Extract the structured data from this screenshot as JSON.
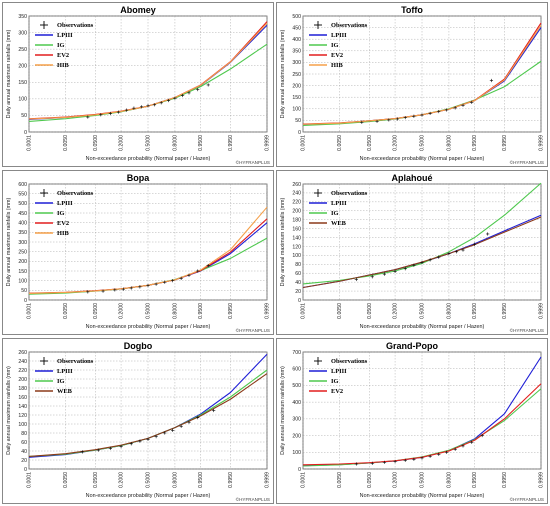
{
  "figure": {
    "watermark": "©HYFRANPLUS",
    "x_axis_label": "Non-exceedance probability (Normal paper / Hazen)",
    "y_axis_label": "Daily annual maximum rainfalls (mm)",
    "x_tick_labels": [
      "0.0001",
      "0.0050",
      "0.0500",
      "0.2000",
      "0.5000",
      "0.8000",
      "0.9500",
      "0.9950",
      "0.9999"
    ]
  },
  "colors": {
    "LPIII": "#1f1fd6",
    "IG": "#4ec84e",
    "EV2": "#e21f1f",
    "HIB": "#f5a04a",
    "WEB": "#8b3a1a",
    "obs": "#000000",
    "grid": "#9a9a9a"
  },
  "chart_data": [
    {
      "type": "line",
      "title": "Abomey",
      "x_scale": "normal-probability",
      "ylim": [
        0,
        350
      ],
      "yticks": [
        0,
        50,
        100,
        150,
        200,
        250,
        300,
        350
      ],
      "legend": [
        "Observations",
        "LPIII",
        "IG",
        "EV2",
        "HIB"
      ],
      "legend_position": "top-left",
      "grid": true,
      "x": [
        0.0001,
        0.005,
        0.05,
        0.2,
        0.5,
        0.8,
        0.95,
        0.995,
        0.9999
      ],
      "series": [
        {
          "name": "LPIII",
          "values": [
            38,
            44,
            52,
            62,
            78,
            104,
            140,
            210,
            322
          ]
        },
        {
          "name": "IG",
          "values": [
            32,
            40,
            50,
            61,
            78,
            102,
            137,
            190,
            265
          ]
        },
        {
          "name": "EV2",
          "values": [
            40,
            45,
            53,
            63,
            78,
            104,
            142,
            212,
            333
          ]
        },
        {
          "name": "HIB",
          "values": [
            39,
            44,
            52,
            62,
            78,
            104,
            141,
            211,
            328
          ]
        }
      ],
      "observations": [
        [
          0.03,
          45
        ],
        [
          0.07,
          52
        ],
        [
          0.12,
          56
        ],
        [
          0.18,
          60
        ],
        [
          0.25,
          66
        ],
        [
          0.33,
          72
        ],
        [
          0.42,
          76
        ],
        [
          0.5,
          79
        ],
        [
          0.58,
          82
        ],
        [
          0.66,
          88
        ],
        [
          0.74,
          95
        ],
        [
          0.8,
          102
        ],
        [
          0.86,
          110
        ],
        [
          0.9,
          118
        ],
        [
          0.94,
          128
        ],
        [
          0.97,
          142
        ]
      ]
    },
    {
      "type": "line",
      "title": "Toffo",
      "x_scale": "normal-probability",
      "ylim": [
        0,
        500
      ],
      "yticks": [
        0,
        50,
        100,
        150,
        200,
        250,
        300,
        350,
        400,
        450,
        500
      ],
      "legend": [
        "Observations",
        "LPIII",
        "IG",
        "EV2",
        "HIB"
      ],
      "legend_position": "top-left",
      "grid": true,
      "x": [
        0.0001,
        0.005,
        0.05,
        0.2,
        0.5,
        0.8,
        0.95,
        0.995,
        0.9999
      ],
      "series": [
        {
          "name": "LPIII",
          "values": [
            32,
            38,
            48,
            58,
            74,
            98,
            135,
            220,
            450
          ]
        },
        {
          "name": "IG",
          "values": [
            28,
            35,
            45,
            56,
            74,
            100,
            138,
            195,
            305
          ]
        },
        {
          "name": "EV2",
          "values": [
            34,
            39,
            48,
            58,
            74,
            98,
            136,
            228,
            470
          ]
        },
        {
          "name": "HIB",
          "values": [
            33,
            38,
            48,
            58,
            74,
            98,
            135,
            224,
            460
          ]
        }
      ],
      "observations": [
        [
          0.03,
          42
        ],
        [
          0.08,
          46
        ],
        [
          0.15,
          52
        ],
        [
          0.22,
          56
        ],
        [
          0.3,
          62
        ],
        [
          0.4,
          68
        ],
        [
          0.5,
          73
        ],
        [
          0.6,
          80
        ],
        [
          0.7,
          88
        ],
        [
          0.78,
          95
        ],
        [
          0.85,
          104
        ],
        [
          0.9,
          115
        ],
        [
          0.94,
          128
        ],
        [
          0.985,
          222
        ]
      ]
    },
    {
      "type": "line",
      "title": "Bopa",
      "x_scale": "normal-probability",
      "ylim": [
        0,
        600
      ],
      "yticks": [
        0,
        50,
        100,
        150,
        200,
        250,
        300,
        350,
        400,
        450,
        500,
        550,
        600
      ],
      "legend": [
        "Observations",
        "LPIII",
        "IG",
        "EV2",
        "HIB"
      ],
      "legend_position": "top-left",
      "grid": true,
      "x": [
        0.0001,
        0.005,
        0.05,
        0.2,
        0.5,
        0.8,
        0.95,
        0.995,
        0.9999
      ],
      "series": [
        {
          "name": "LPIII",
          "values": [
            32,
            38,
            47,
            58,
            76,
            104,
            150,
            240,
            400
          ]
        },
        {
          "name": "IG",
          "values": [
            30,
            36,
            46,
            57,
            76,
            106,
            152,
            215,
            320
          ]
        },
        {
          "name": "EV2",
          "values": [
            35,
            40,
            48,
            58,
            76,
            104,
            152,
            248,
            420
          ]
        },
        {
          "name": "HIB",
          "values": [
            34,
            39,
            47,
            58,
            76,
            104,
            155,
            260,
            480
          ]
        }
      ],
      "observations": [
        [
          0.03,
          42
        ],
        [
          0.08,
          46
        ],
        [
          0.15,
          52
        ],
        [
          0.22,
          56
        ],
        [
          0.3,
          62
        ],
        [
          0.4,
          68
        ],
        [
          0.5,
          74
        ],
        [
          0.6,
          82
        ],
        [
          0.7,
          92
        ],
        [
          0.78,
          100
        ],
        [
          0.85,
          112
        ],
        [
          0.9,
          128
        ],
        [
          0.94,
          150
        ],
        [
          0.97,
          178
        ]
      ]
    },
    {
      "type": "line",
      "title": "Aplahoué",
      "x_scale": "normal-probability",
      "ylim": [
        0,
        260
      ],
      "yticks": [
        0,
        20,
        40,
        60,
        80,
        100,
        120,
        140,
        160,
        180,
        200,
        220,
        240,
        260
      ],
      "legend": [
        "Observations",
        "LPIII",
        "IG",
        "WEB"
      ],
      "legend_position": "top-left",
      "grid": true,
      "x": [
        0.0001,
        0.005,
        0.05,
        0.2,
        0.5,
        0.8,
        0.95,
        0.995,
        0.9999
      ],
      "series": [
        {
          "name": "LPIII",
          "values": [
            28,
            42,
            56,
            68,
            84,
            104,
            126,
            155,
            190
          ]
        },
        {
          "name": "IG",
          "values": [
            36,
            44,
            54,
            65,
            82,
            108,
            140,
            190,
            262
          ]
        },
        {
          "name": "WEB",
          "values": [
            28,
            42,
            56,
            68,
            85,
            104,
            124,
            152,
            186
          ]
        }
      ],
      "observations": [
        [
          0.02,
          46
        ],
        [
          0.06,
          52
        ],
        [
          0.12,
          58
        ],
        [
          0.2,
          64
        ],
        [
          0.3,
          70
        ],
        [
          0.4,
          78
        ],
        [
          0.5,
          84
        ],
        [
          0.6,
          90
        ],
        [
          0.7,
          96
        ],
        [
          0.8,
          104
        ],
        [
          0.86,
          108
        ],
        [
          0.9,
          112
        ],
        [
          0.95,
          125
        ],
        [
          0.98,
          148
        ]
      ]
    },
    {
      "type": "line",
      "title": "Dogbo",
      "x_scale": "normal-probability",
      "ylim": [
        0,
        260
      ],
      "yticks": [
        0,
        20,
        40,
        60,
        80,
        100,
        120,
        140,
        160,
        180,
        200,
        220,
        240,
        260
      ],
      "legend": [
        "Observations",
        "LPIII",
        "IG",
        "WEB"
      ],
      "legend_position": "top-left",
      "grid": true,
      "x": [
        0.0001,
        0.005,
        0.05,
        0.2,
        0.5,
        0.8,
        0.95,
        0.995,
        0.9999
      ],
      "series": [
        {
          "name": "LPIII",
          "values": [
            26,
            32,
            42,
            52,
            68,
            92,
            122,
            170,
            255
          ]
        },
        {
          "name": "IG",
          "values": [
            28,
            33,
            42,
            52,
            68,
            92,
            120,
            160,
            220
          ]
        },
        {
          "name": "WEB",
          "values": [
            28,
            34,
            43,
            53,
            68,
            92,
            118,
            155,
            212
          ]
        }
      ],
      "observations": [
        [
          0.02,
          38
        ],
        [
          0.06,
          42
        ],
        [
          0.12,
          46
        ],
        [
          0.2,
          50
        ],
        [
          0.3,
          56
        ],
        [
          0.4,
          62
        ],
        [
          0.5,
          66
        ],
        [
          0.6,
          72
        ],
        [
          0.7,
          80
        ],
        [
          0.78,
          86
        ],
        [
          0.85,
          95
        ],
        [
          0.9,
          104
        ],
        [
          0.94,
          114
        ],
        [
          0.98,
          130
        ]
      ]
    },
    {
      "type": "line",
      "title": "Grand-Popo",
      "x_scale": "normal-probability",
      "ylim": [
        0,
        700
      ],
      "yticks": [
        0,
        100,
        200,
        300,
        400,
        500,
        600,
        700
      ],
      "legend": [
        "Observations",
        "LPIII",
        "IG",
        "EV2"
      ],
      "legend_position": "top-left",
      "grid": true,
      "x": [
        0.0001,
        0.005,
        0.05,
        0.2,
        0.5,
        0.8,
        0.95,
        0.995,
        0.9999
      ],
      "series": [
        {
          "name": "LPIII",
          "values": [
            20,
            26,
            36,
            48,
            70,
            110,
            180,
            330,
            670
          ]
        },
        {
          "name": "IG",
          "values": [
            18,
            25,
            36,
            49,
            72,
            112,
            176,
            290,
            480
          ]
        },
        {
          "name": "EV2",
          "values": [
            25,
            30,
            38,
            49,
            70,
            108,
            172,
            300,
            510
          ]
        }
      ],
      "observations": [
        [
          0.02,
          30
        ],
        [
          0.06,
          34
        ],
        [
          0.12,
          40
        ],
        [
          0.2,
          45
        ],
        [
          0.3,
          52
        ],
        [
          0.4,
          58
        ],
        [
          0.5,
          66
        ],
        [
          0.6,
          76
        ],
        [
          0.7,
          88
        ],
        [
          0.78,
          100
        ],
        [
          0.85,
          118
        ],
        [
          0.9,
          138
        ],
        [
          0.94,
          160
        ],
        [
          0.97,
          200
        ]
      ]
    }
  ]
}
